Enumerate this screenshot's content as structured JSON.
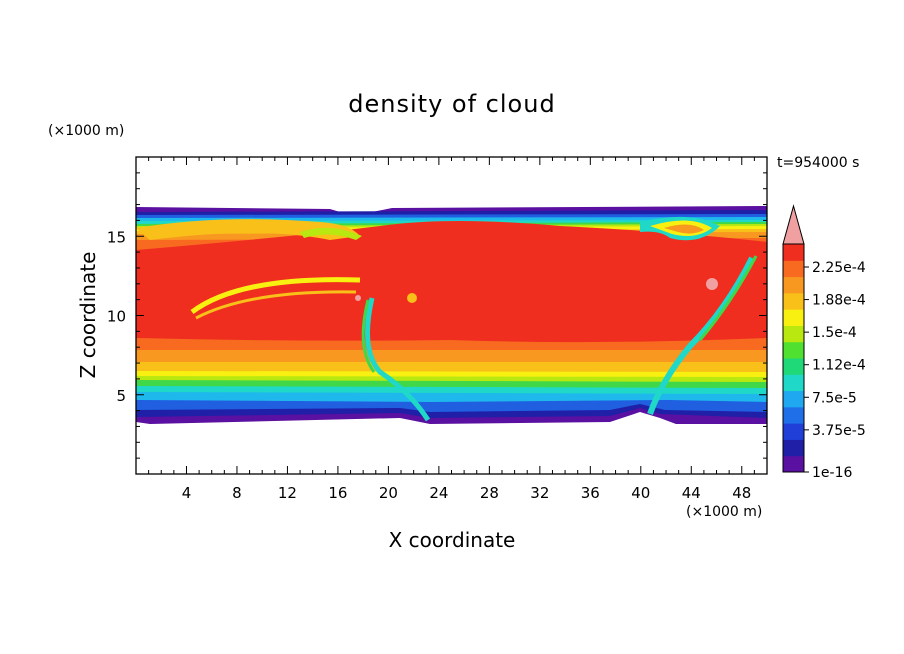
{
  "chart_data": {
    "type": "heatmap",
    "title": "density of cloud",
    "xlabel": "X coordinate",
    "ylabel": "Z coordinate",
    "x_unit": "(×1000 m)",
    "y_unit": "(×1000 m)",
    "time_label": "t=954000 s",
    "xlim": [
      0,
      50
    ],
    "ylim": [
      0,
      20
    ],
    "x_ticks": [
      4,
      8,
      12,
      16,
      20,
      24,
      28,
      32,
      36,
      40,
      44,
      48
    ],
    "y_ticks": [
      5,
      10,
      15
    ],
    "colorbar": {
      "labels": [
        "2.25e-4",
        "1.88e-4",
        "1.5e-4",
        "1.12e-4",
        "7.5e-5",
        "3.75e-5",
        "1e-16"
      ],
      "levels": [
        1e-16,
        1.875e-05,
        3.75e-05,
        5.625e-05,
        7.5e-05,
        9.375e-05,
        0.0001125,
        0.00013125,
        0.00015,
        0.00016875,
        0.0001875,
        0.00020625,
        0.000225,
        0.00024375
      ],
      "colors": [
        "#5a10a0",
        "#1f1fa8",
        "#1f3fd8",
        "#1f6fe8",
        "#1fa8f0",
        "#1fd8c8",
        "#1fd878",
        "#50e030",
        "#b8e810",
        "#f8f010",
        "#f8c018",
        "#f89820",
        "#f86a20",
        "#f02e20"
      ],
      "overflow_color": "#f0a0a0"
    },
    "cloud_extent": {
      "x_range": [
        0,
        50
      ],
      "z_base_approx": 3.5,
      "z_top_approx": 16.8
    },
    "notes_visible": "Dense cloud band (~2.25e-4) between z≈6 and z≈15 km; thin low-density edges near z≈3.5 and z≈16.7 km; two slanted clear channels near x≈18–23 and x≈40–46."
  }
}
